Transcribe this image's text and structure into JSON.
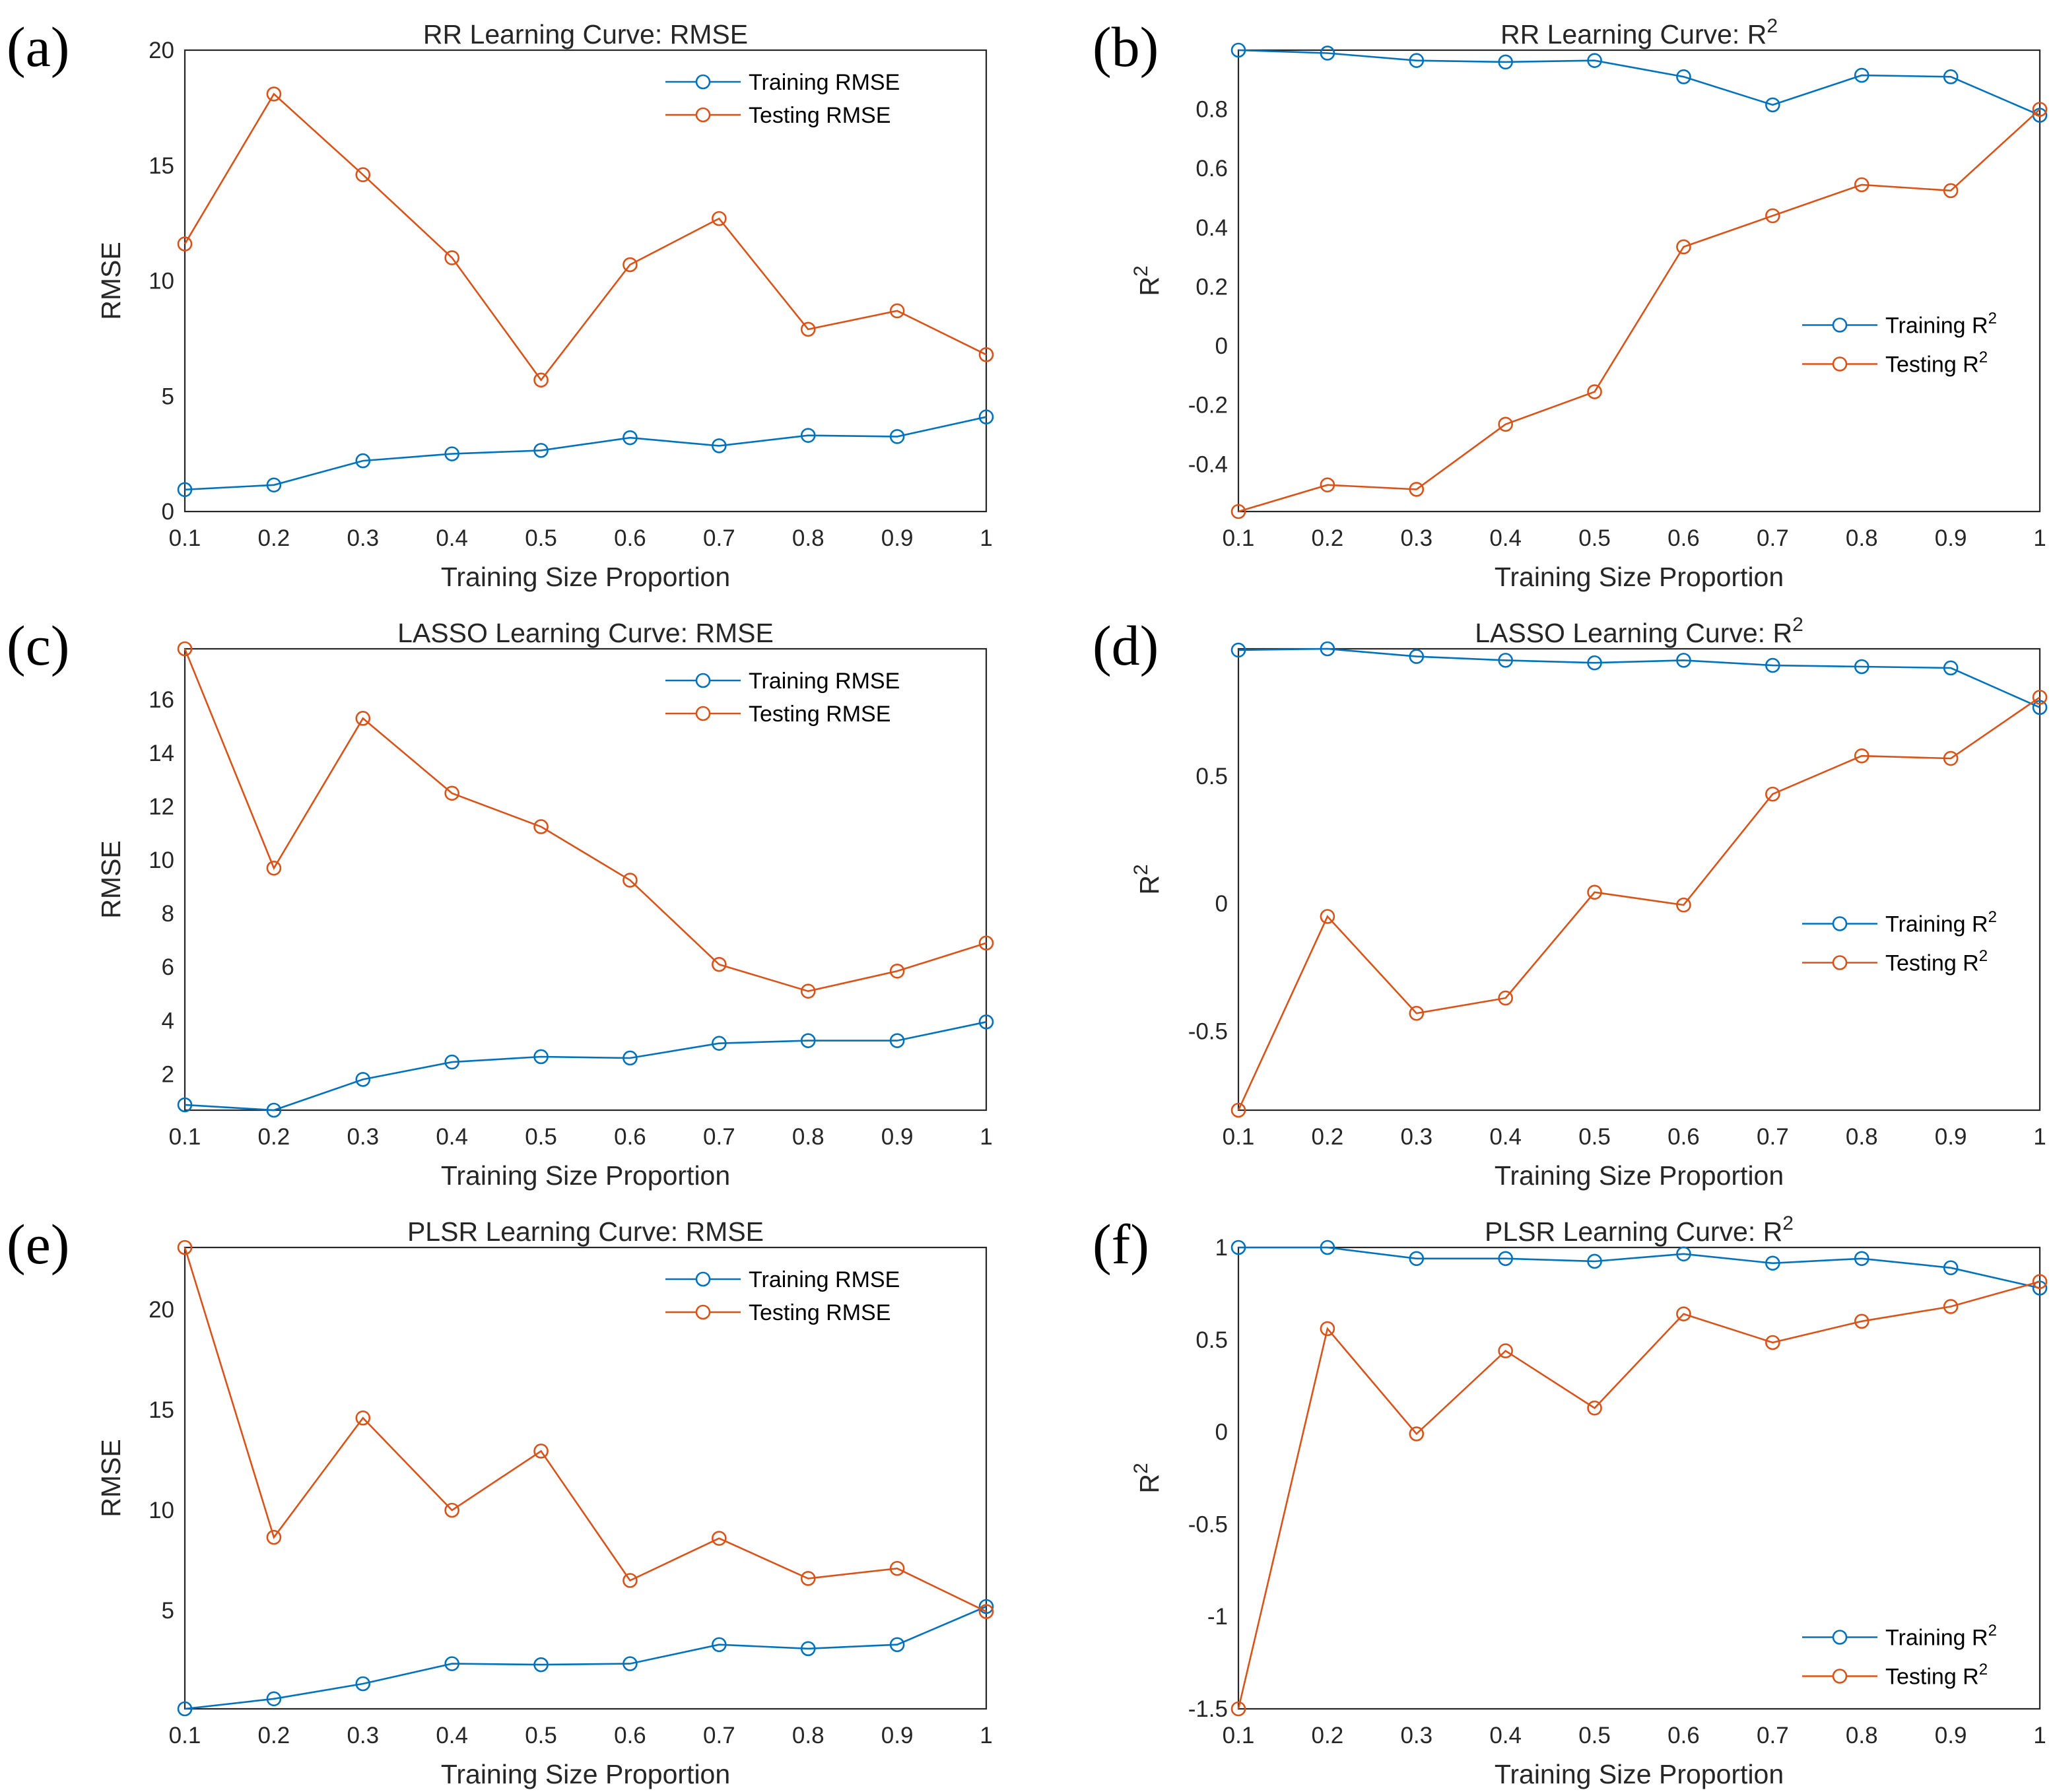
{
  "colors": {
    "training": "#0072BD",
    "testing": "#D95319"
  },
  "chart_data": [
    {
      "type": "line",
      "panel": "(a)",
      "title": "RR Learning Curve: RMSE",
      "xlabel": "Training Size Proportion",
      "ylabel": "RMSE",
      "xlim": [
        0.1,
        1
      ],
      "ylim": [
        0,
        20
      ],
      "xticks": [
        0.1,
        0.2,
        0.3,
        0.4,
        0.5,
        0.6,
        0.7,
        0.8,
        0.9,
        1
      ],
      "xtick_labels": [
        "0.1",
        "0.2",
        "0.3",
        "0.4",
        "0.5",
        "0.6",
        "0.7",
        "0.8",
        "0.9",
        "1"
      ],
      "yticks": [
        0,
        5,
        10,
        15,
        20
      ],
      "ytick_labels": [
        "0",
        "5",
        "10",
        "15",
        "20"
      ],
      "grid": true,
      "legend_position": "top-right",
      "x": [
        0.1,
        0.2,
        0.3,
        0.4,
        0.5,
        0.6,
        0.7,
        0.8,
        0.9,
        1
      ],
      "series": [
        {
          "name": "Training RMSE",
          "color_key": "training",
          "values": [
            0.95,
            1.15,
            2.2,
            2.5,
            2.65,
            3.2,
            2.85,
            3.3,
            3.25,
            4.1
          ]
        },
        {
          "name": "Testing RMSE",
          "color_key": "testing",
          "values": [
            11.6,
            18.1,
            14.6,
            11.0,
            5.7,
            10.7,
            12.7,
            7.9,
            8.7,
            6.8
          ]
        }
      ]
    },
    {
      "type": "line",
      "panel": "(b)",
      "title": "RR Learning Curve: R²",
      "xlabel": "Training Size Proportion",
      "ylabel": "R²",
      "xlim": [
        0.1,
        1
      ],
      "ylim": [
        -0.56,
        1.0
      ],
      "xticks": [
        0.1,
        0.2,
        0.3,
        0.4,
        0.5,
        0.6,
        0.7,
        0.8,
        0.9,
        1
      ],
      "xtick_labels": [
        "0.1",
        "0.2",
        "0.3",
        "0.4",
        "0.5",
        "0.6",
        "0.7",
        "0.8",
        "0.9",
        "1"
      ],
      "yticks": [
        -0.4,
        -0.2,
        0,
        0.2,
        0.4,
        0.6,
        0.8
      ],
      "ytick_labels": [
        "-0.4",
        "-0.2",
        "0",
        "0.2",
        "0.4",
        "0.6",
        "0.8"
      ],
      "grid": true,
      "legend_position": "right",
      "x": [
        0.1,
        0.2,
        0.3,
        0.4,
        0.5,
        0.6,
        0.7,
        0.8,
        0.9,
        1
      ],
      "series": [
        {
          "name": "Training R²",
          "color_key": "training",
          "values": [
            1.0,
            0.99,
            0.965,
            0.96,
            0.965,
            0.91,
            0.815,
            0.915,
            0.91,
            0.78
          ]
        },
        {
          "name": "Testing R²",
          "color_key": "testing",
          "values": [
            -0.56,
            -0.47,
            -0.485,
            -0.265,
            -0.155,
            0.335,
            0.44,
            0.545,
            0.525,
            0.8
          ]
        }
      ]
    },
    {
      "type": "line",
      "panel": "(c)",
      "title": "LASSO Learning Curve: RMSE",
      "xlabel": "Training Size Proportion",
      "ylabel": "RMSE",
      "xlim": [
        0.1,
        1
      ],
      "ylim": [
        0.65,
        17.9
      ],
      "xticks": [
        0.1,
        0.2,
        0.3,
        0.4,
        0.5,
        0.6,
        0.7,
        0.8,
        0.9,
        1
      ],
      "xtick_labels": [
        "0.1",
        "0.2",
        "0.3",
        "0.4",
        "0.5",
        "0.6",
        "0.7",
        "0.8",
        "0.9",
        "1"
      ],
      "yticks": [
        2,
        4,
        6,
        8,
        10,
        12,
        14,
        16
      ],
      "ytick_labels": [
        "2",
        "4",
        "6",
        "8",
        "10",
        "12",
        "14",
        "16"
      ],
      "grid": true,
      "legend_position": "top-right",
      "x": [
        0.1,
        0.2,
        0.3,
        0.4,
        0.5,
        0.6,
        0.7,
        0.8,
        0.9,
        1
      ],
      "series": [
        {
          "name": "Training RMSE",
          "color_key": "training",
          "values": [
            0.85,
            0.65,
            1.8,
            2.45,
            2.65,
            2.6,
            3.15,
            3.25,
            3.25,
            3.95
          ]
        },
        {
          "name": "Testing RMSE",
          "color_key": "testing",
          "values": [
            17.9,
            9.7,
            15.3,
            12.5,
            11.25,
            9.25,
            6.1,
            5.1,
            5.85,
            6.9
          ]
        }
      ]
    },
    {
      "type": "line",
      "panel": "(d)",
      "title": "LASSO Learning Curve: R²",
      "xlabel": "Training Size Proportion",
      "ylabel": "R²",
      "xlim": [
        0.1,
        1
      ],
      "ylim": [
        -0.81,
        1.0
      ],
      "xticks": [
        0.1,
        0.2,
        0.3,
        0.4,
        0.5,
        0.6,
        0.7,
        0.8,
        0.9,
        1
      ],
      "xtick_labels": [
        "0.1",
        "0.2",
        "0.3",
        "0.4",
        "0.5",
        "0.6",
        "0.7",
        "0.8",
        "0.9",
        "1"
      ],
      "yticks": [
        -0.5,
        0,
        0.5
      ],
      "ytick_labels": [
        "-0.5",
        "0",
        "0.5"
      ],
      "grid": true,
      "legend_position": "right",
      "x": [
        0.1,
        0.2,
        0.3,
        0.4,
        0.5,
        0.6,
        0.7,
        0.8,
        0.9,
        1
      ],
      "series": [
        {
          "name": "Training R²",
          "color_key": "training",
          "values": [
            0.995,
            1.0,
            0.97,
            0.955,
            0.945,
            0.955,
            0.935,
            0.93,
            0.925,
            0.77
          ]
        },
        {
          "name": "Testing R²",
          "color_key": "testing",
          "values": [
            -0.81,
            -0.05,
            -0.43,
            -0.37,
            0.045,
            -0.005,
            0.43,
            0.58,
            0.57,
            0.81
          ]
        }
      ]
    },
    {
      "type": "line",
      "panel": "(e)",
      "title": "PLSR Learning Curve: RMSE",
      "xlabel": "Training Size Proportion",
      "ylabel": "RMSE",
      "xlim": [
        0.1,
        1
      ],
      "ylim": [
        0.1,
        23.1
      ],
      "xticks": [
        0.1,
        0.2,
        0.3,
        0.4,
        0.5,
        0.6,
        0.7,
        0.8,
        0.9,
        1
      ],
      "xtick_labels": [
        "0.1",
        "0.2",
        "0.3",
        "0.4",
        "0.5",
        "0.6",
        "0.7",
        "0.8",
        "0.9",
        "1"
      ],
      "yticks": [
        5,
        10,
        15,
        20
      ],
      "ytick_labels": [
        "5",
        "10",
        "15",
        "20"
      ],
      "grid": true,
      "legend_position": "top-right",
      "x": [
        0.1,
        0.2,
        0.3,
        0.4,
        0.5,
        0.6,
        0.7,
        0.8,
        0.9,
        1
      ],
      "series": [
        {
          "name": "Training RMSE",
          "color_key": "training",
          "values": [
            0.1,
            0.6,
            1.35,
            2.35,
            2.3,
            2.35,
            3.3,
            3.1,
            3.3,
            5.2
          ]
        },
        {
          "name": "Testing RMSE",
          "color_key": "testing",
          "values": [
            23.1,
            8.65,
            14.6,
            10.0,
            12.95,
            6.5,
            8.6,
            6.6,
            7.1,
            4.95
          ]
        }
      ]
    },
    {
      "type": "line",
      "panel": "(f)",
      "title": "PLSR Learning Curve: R²",
      "xlabel": "Training Size Proportion",
      "ylabel": "R²",
      "xlim": [
        0.1,
        1
      ],
      "ylim": [
        -1.5,
        1.0
      ],
      "xticks": [
        0.1,
        0.2,
        0.3,
        0.4,
        0.5,
        0.6,
        0.7,
        0.8,
        0.9,
        1
      ],
      "xtick_labels": [
        "0.1",
        "0.2",
        "0.3",
        "0.4",
        "0.5",
        "0.6",
        "0.7",
        "0.8",
        "0.9",
        "1"
      ],
      "yticks": [
        -1.5,
        -1,
        -0.5,
        0,
        0.5,
        1
      ],
      "ytick_labels": [
        "-1.5",
        "-1",
        "-0.5",
        "0",
        "0.5",
        "1"
      ],
      "grid": true,
      "legend_position": "bottom-right",
      "x": [
        0.1,
        0.2,
        0.3,
        0.4,
        0.5,
        0.6,
        0.7,
        0.8,
        0.9,
        1
      ],
      "series": [
        {
          "name": "Training R²",
          "color_key": "training",
          "values": [
            1.0,
            1.0,
            0.94,
            0.94,
            0.925,
            0.965,
            0.915,
            0.94,
            0.89,
            0.78
          ]
        },
        {
          "name": "Testing R²",
          "color_key": "testing",
          "values": [
            -1.5,
            0.56,
            -0.01,
            0.44,
            0.13,
            0.64,
            0.485,
            0.6,
            0.68,
            0.815
          ]
        }
      ]
    }
  ]
}
